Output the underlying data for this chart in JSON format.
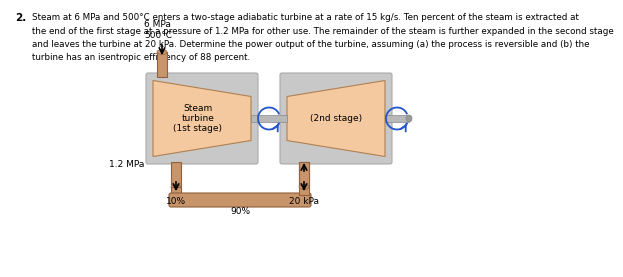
{
  "title_problem": "2.",
  "title_text": "Steam at 6 MPa and 500°C enters a two-stage adiabatic turbine at a rate of 15 kg/s. Ten percent of the steam is extracted at\nthe end of the first stage at a pressure of 1.2 MPa for other use. The remainder of the steam is further expanded in the second stage\nand leaves the turbine at 20 kPa. Determine the power output of the turbine, assuming (a) the process is reversible and (b) the\nturbine has an isentropic efficiency of 88 percent.",
  "label_inlet": "6 MPa\n500°C",
  "label_12mpa": "1.2 MPa",
  "label_stage1": "Steam\nturbine\n(1st stage)",
  "label_stage2": "(2nd stage)",
  "label_10pct": "10%",
  "label_90pct": "90%",
  "label_20kpa": "20 kPa",
  "turbine_color": "#f5c9a0",
  "pipe_color": "#c8956a",
  "shaft_color": "#b8b8b8",
  "housing_color": "#c8c8c8",
  "arrow_color": "#2255cc",
  "text_color": "#000000",
  "fig_bg": "#ffffff"
}
